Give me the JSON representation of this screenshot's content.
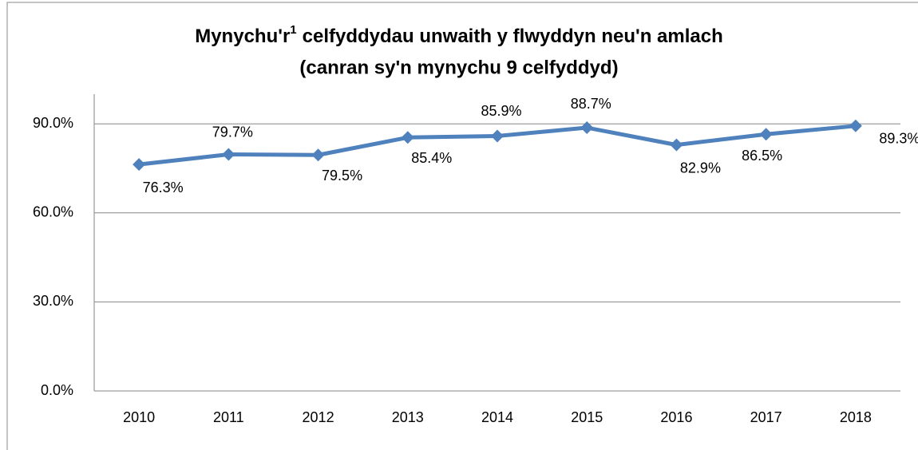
{
  "chart_data": {
    "type": "line",
    "title": [
      "Mynychu'r",
      "1",
      "celfyddydau unwaith y flwyddyn neu'n amlach"
    ],
    "subtitle": "(canran sy'n mynychu 9 celfyddyd)",
    "categories": [
      "2010",
      "2011",
      "2012",
      "2013",
      "2014",
      "2015",
      "2016",
      "2017",
      "2018"
    ],
    "values": [
      76.3,
      79.7,
      79.5,
      85.4,
      85.9,
      88.7,
      82.9,
      86.5,
      89.3
    ],
    "value_labels": [
      "76.3%",
      "79.7%",
      "79.5%",
      "85.4%",
      "85.9%",
      "88.7%",
      "82.9%",
      "86.5%",
      "89.3%"
    ],
    "color": "#4f81bd",
    "ylim": [
      0,
      100
    ],
    "yticks": [
      {
        "value": 0,
        "label": "0.0%"
      },
      {
        "value": 30,
        "label": "30.0%"
      },
      {
        "value": 60,
        "label": "60.0%"
      },
      {
        "value": 90,
        "label": "90.0%"
      }
    ],
    "grid": true
  }
}
